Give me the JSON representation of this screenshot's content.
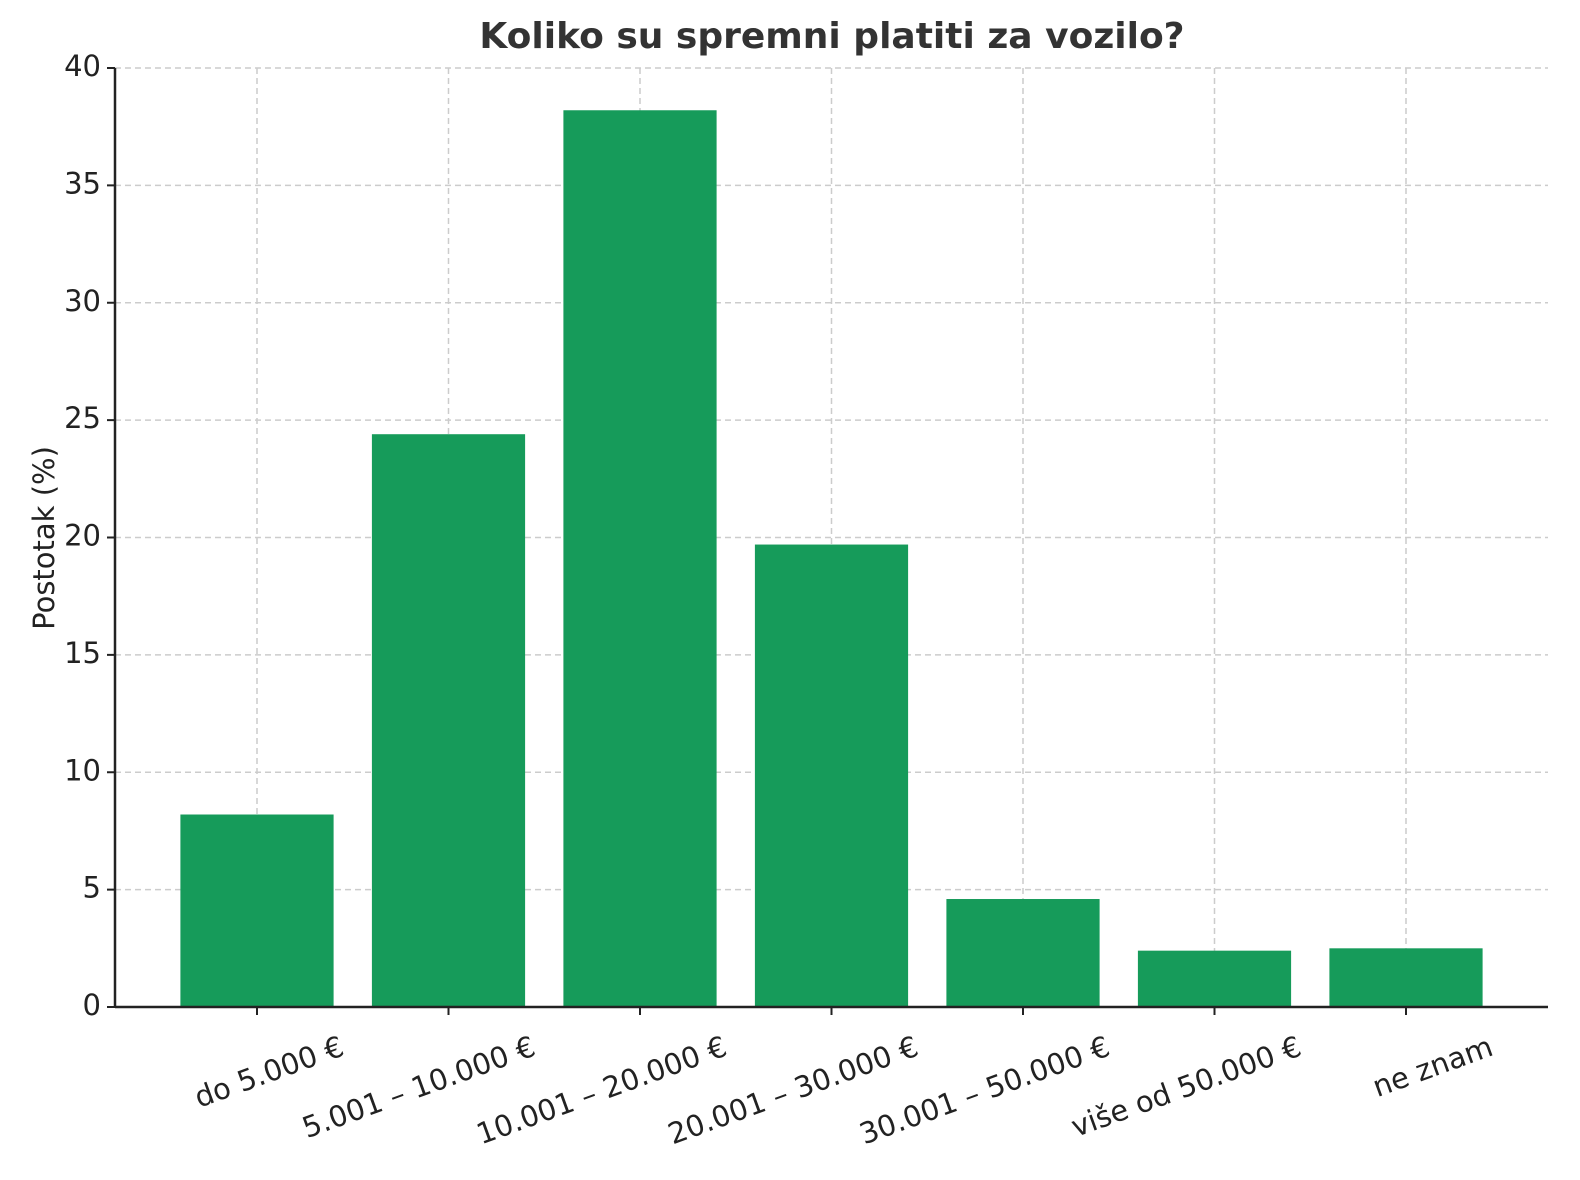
{
  "chart_data": {
    "type": "bar",
    "title": "Koliko su spremni platiti za vozilo?",
    "y_label": "Postotak (%)",
    "categories": [
      "do 5.000 €",
      "5.001 – 10.000 €",
      "10.001 – 20.000 €",
      "20.001 – 30.000 €",
      "30.001 – 50.000 €",
      "više od 50.000 €",
      "ne znam"
    ],
    "values": [
      8.2,
      24.4,
      38.2,
      19.7,
      4.6,
      2.4,
      2.5
    ],
    "color": "#169b5a",
    "ylim": [
      0,
      40
    ],
    "yticks": [
      0,
      5,
      10,
      15,
      20,
      25,
      30,
      35,
      40
    ],
    "grid": true
  }
}
